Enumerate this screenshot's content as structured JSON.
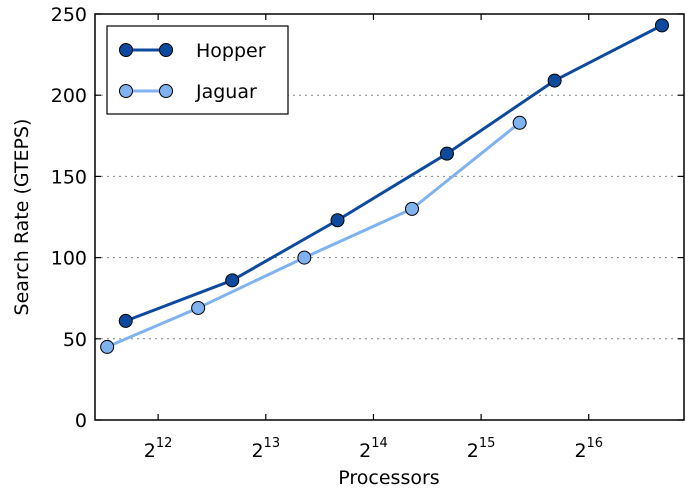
{
  "chart_data": {
    "type": "line",
    "xlabel": "Processors",
    "ylabel": "Search Rate (GTEPS)",
    "x_scale": "log2",
    "xlim": [
      2728,
      121000
    ],
    "ylim": [
      0,
      250
    ],
    "x_ticks": [
      4096,
      8192,
      16384,
      32768,
      65536
    ],
    "x_tick_base": "2",
    "x_tick_exponents": [
      "12",
      "13",
      "14",
      "15",
      "16"
    ],
    "y_ticks": [
      0,
      50,
      100,
      150,
      200,
      250
    ],
    "y_tick_labels": [
      "0",
      "50",
      "100",
      "150",
      "200",
      "250"
    ],
    "grid": "horizontal dotted",
    "legend_position": "top-left",
    "series": [
      {
        "name": "Hopper",
        "color": "#0d4a9e",
        "x": [
          3325,
          6600,
          13000,
          26300,
          52600,
          105000
        ],
        "y": [
          61,
          86,
          123,
          164,
          209,
          243
        ]
      },
      {
        "name": "Jaguar",
        "color": "#7fb2ef",
        "x": [
          2950,
          5300,
          10500,
          21000,
          42000
        ],
        "y": [
          45,
          69,
          100,
          130,
          183
        ]
      }
    ]
  }
}
